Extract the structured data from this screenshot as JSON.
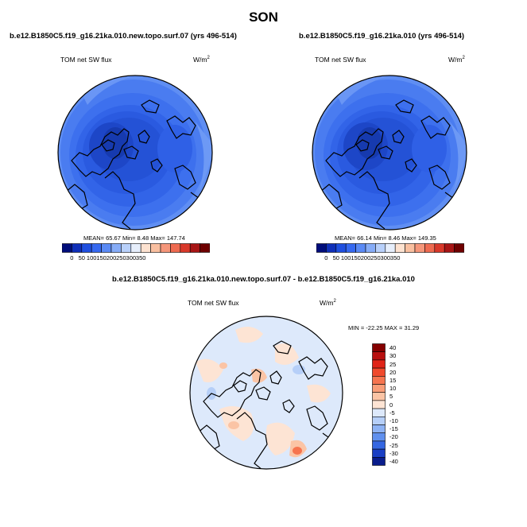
{
  "title": "SON",
  "panels": [
    {
      "title": "b.e12.B1850C5.f19_g16.21ka.010.new.topo.surf.07 (yrs 496-514)",
      "variable": "TOM net SW flux",
      "units": "W/m",
      "units_sup": "2",
      "stats": "MEAN=  65.67  Min=   8.48  Max= 147.74",
      "colorbar_ticks": [
        "0",
        "50",
        "100",
        "150",
        "200",
        "250",
        "300",
        "350"
      ]
    },
    {
      "title": "b.e12.B1850C5.f19_g16.21ka.010 (yrs 496-514)",
      "variable": "TOM net SW flux",
      "units": "W/m",
      "units_sup": "2",
      "stats": "MEAN=  66.14  Min=   8.46  Max= 149.35",
      "colorbar_ticks": [
        "0",
        "50",
        "100",
        "150",
        "200",
        "250",
        "300",
        "350"
      ]
    }
  ],
  "diff_panel": {
    "title": "b.e12.B1850C5.f19_g16.21ka.010.new.topo.surf.07 - b.e12.B1850C5.f19_g16.21ka.010",
    "variable": "TOM net SW flux",
    "units": "W/m",
    "units_sup": "2",
    "stats": "MIN = -22.25 MAX =  31.29",
    "colorbar_ticks": [
      "40",
      "30",
      "25",
      "20",
      "15",
      "10",
      "5",
      "0",
      "-5",
      "-10",
      "-15",
      "-20",
      "-25",
      "-30",
      "-40"
    ]
  },
  "colors": {
    "abs_scale": [
      "#000d7a",
      "#0f2fb8",
      "#1f4fdf",
      "#3669f0",
      "#5a8af5",
      "#86acf7",
      "#b8d0fa",
      "#e6eefb",
      "#fde2d0",
      "#f9bfa0",
      "#f5967a",
      "#ee6a50",
      "#d8382a",
      "#a81515",
      "#6e0000"
    ],
    "diff_scale": [
      "#850000",
      "#b80f0f",
      "#e02418",
      "#f0492c",
      "#f6744f",
      "#f99d78",
      "#fbc4a5",
      "#fde4d4",
      "#dde9fb",
      "#b6cff8",
      "#8db2f4",
      "#6090ee",
      "#3567e2",
      "#1a3fc4",
      "#0a1d8c"
    ]
  }
}
